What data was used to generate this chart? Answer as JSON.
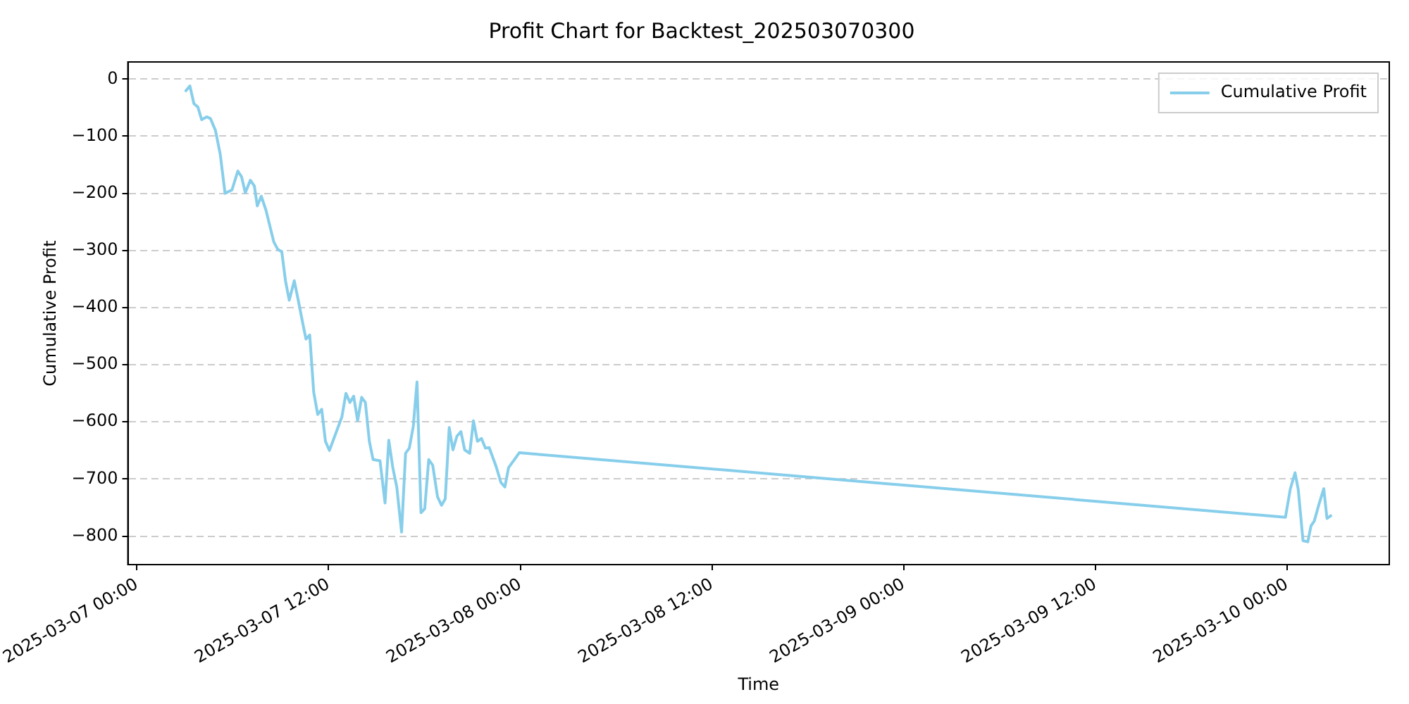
{
  "chart_data": {
    "type": "line",
    "title": "Profit Chart for Backtest_202503070300",
    "xlabel": "Time",
    "ylabel": "Cumulative Profit",
    "x": [
      "2025-03-07T03:01",
      "2025-03-07T03:19",
      "2025-03-07T03:34",
      "2025-03-07T03:49",
      "2025-03-07T04:03",
      "2025-03-07T04:22",
      "2025-03-07T04:36",
      "2025-03-07T04:55",
      "2025-03-07T05:13",
      "2025-03-07T05:31",
      "2025-03-07T05:57",
      "2025-03-07T06:19",
      "2025-03-07T06:33",
      "2025-03-07T06:47",
      "2025-03-07T07:06",
      "2025-03-07T07:21",
      "2025-03-07T07:32",
      "2025-03-07T07:47",
      "2025-03-07T08:05",
      "2025-03-07T08:34",
      "2025-03-07T08:49",
      "2025-03-07T09:04",
      "2025-03-07T09:18",
      "2025-03-07T09:32",
      "2025-03-07T09:51",
      "2025-03-07T10:05",
      "2025-03-07T10:24",
      "2025-03-07T10:35",
      "2025-03-07T10:49",
      "2025-03-07T11:04",
      "2025-03-07T11:19",
      "2025-03-07T11:34",
      "2025-03-07T11:48",
      "2025-03-07T12:03",
      "2025-03-07T12:50",
      "2025-03-07T13:05",
      "2025-03-07T13:20",
      "2025-03-07T13:34",
      "2025-03-07T13:49",
      "2025-03-07T14:04",
      "2025-03-07T14:18",
      "2025-03-07T14:33",
      "2025-03-07T14:47",
      "2025-03-07T15:13",
      "2025-03-07T15:32",
      "2025-03-07T15:46",
      "2025-03-07T16:01",
      "2025-03-07T16:16",
      "2025-03-07T16:34",
      "2025-03-07T16:49",
      "2025-03-07T17:03",
      "2025-03-07T17:18",
      "2025-03-07T17:32",
      "2025-03-07T17:47",
      "2025-03-07T18:01",
      "2025-03-07T18:16",
      "2025-03-07T18:31",
      "2025-03-07T18:49",
      "2025-03-07T19:04",
      "2025-03-07T19:18",
      "2025-03-07T19:33",
      "2025-03-07T19:47",
      "2025-03-07T20:02",
      "2025-03-07T20:17",
      "2025-03-07T20:31",
      "2025-03-07T20:50",
      "2025-03-07T21:04",
      "2025-03-07T21:19",
      "2025-03-07T21:34",
      "2025-03-07T21:49",
      "2025-03-07T22:03",
      "2025-03-07T22:29",
      "2025-03-07T22:47",
      "2025-03-07T23:02",
      "2025-03-07T23:16",
      "2025-03-07T23:35",
      "2025-03-07T23:56",
      "2025-03-08T00:48",
      "2025-03-09T23:54",
      "2025-03-10T00:12",
      "2025-03-10T00:30",
      "2025-03-10T00:42",
      "2025-03-10T01:00",
      "2025-03-10T01:18",
      "2025-03-10T01:30",
      "2025-03-10T01:42",
      "2025-03-10T02:00",
      "2025-03-10T02:18",
      "2025-03-10T02:30",
      "2025-03-10T02:48"
    ],
    "series": [
      {
        "name": "Cumulative Profit",
        "color": "#87ceeb",
        "values": [
          -22,
          -12,
          -43,
          -49,
          -71,
          -66,
          -69,
          -90,
          -132,
          -200,
          -194,
          -161,
          -171,
          -199,
          -177,
          -187,
          -222,
          -205,
          -230,
          -285,
          -298,
          -302,
          -353,
          -387,
          -353,
          -385,
          -430,
          -455,
          -448,
          -548,
          -587,
          -578,
          -634,
          -650,
          -591,
          -550,
          -566,
          -555,
          -598,
          -557,
          -566,
          -634,
          -666,
          -668,
          -742,
          -632,
          -680,
          -714,
          -793,
          -655,
          -646,
          -608,
          -530,
          -759,
          -752,
          -666,
          -676,
          -731,
          -746,
          -735,
          -610,
          -649,
          -625,
          -617,
          -649,
          -655,
          -598,
          -634,
          -629,
          -646,
          -645,
          -678,
          -706,
          -714,
          -680,
          -668,
          -654,
          -656,
          -767,
          -718,
          -689,
          -718,
          -808,
          -810,
          -782,
          -774,
          -744,
          -717,
          -769,
          -763
        ]
      }
    ],
    "xlim": [
      "2025-03-06T23:26",
      "2025-03-10T06:24"
    ],
    "xticks": [
      {
        "value": "2025-03-07T00:00",
        "label": "2025-03-07 00:00"
      },
      {
        "value": "2025-03-07T12:00",
        "label": "2025-03-07 12:00"
      },
      {
        "value": "2025-03-08T00:00",
        "label": "2025-03-08 00:00"
      },
      {
        "value": "2025-03-08T12:00",
        "label": "2025-03-08 12:00"
      },
      {
        "value": "2025-03-09T00:00",
        "label": "2025-03-09 00:00"
      },
      {
        "value": "2025-03-09T12:00",
        "label": "2025-03-09 12:00"
      },
      {
        "value": "2025-03-10T00:00",
        "label": "2025-03-10 00:00"
      }
    ],
    "ylim": [
      -850,
      30
    ],
    "yticks": [
      -800,
      -700,
      -600,
      -500,
      -400,
      -300,
      -200,
      -100,
      0
    ],
    "grid": "y",
    "legend": "top right",
    "marker": "none",
    "line_style": "solid"
  }
}
